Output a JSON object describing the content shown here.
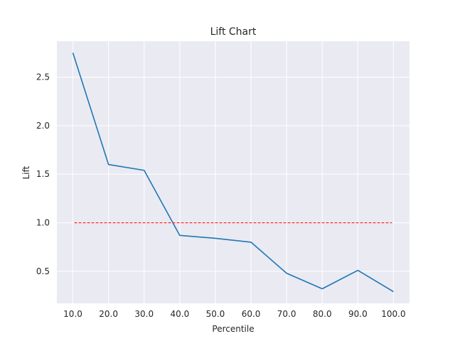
{
  "chart_data": {
    "type": "line",
    "title": "Lift Chart",
    "xlabel": "Percentile",
    "ylabel": "Lift",
    "categories": [
      "10.0",
      "20.0",
      "30.0",
      "40.0",
      "50.0",
      "60.0",
      "70.0",
      "80.0",
      "90.0",
      "100.0"
    ],
    "x": [
      10,
      20,
      30,
      40,
      50,
      60,
      70,
      80,
      90,
      100
    ],
    "series": [
      {
        "values": [
          2.75,
          1.6,
          1.54,
          0.87,
          0.84,
          0.8,
          0.48,
          0.32,
          0.51,
          0.29
        ],
        "color": "#1f77b4",
        "style": "solid"
      },
      {
        "values": [
          1.0,
          1.0,
          1.0,
          1.0,
          1.0,
          1.0,
          1.0,
          1.0,
          1.0,
          1.0
        ],
        "color": "#ff0000",
        "style": "dashed"
      }
    ],
    "xlim": [
      5.5,
      104.5
    ],
    "ylim": [
      0.17,
      2.87
    ],
    "yticks": [
      0.5,
      1.0,
      1.5,
      2.0,
      2.5
    ],
    "ytick_labels": [
      "0.5",
      "1.0",
      "1.5",
      "2.0",
      "2.5"
    ],
    "grid": true,
    "background": "#eaeaf2",
    "grid_color": "#ffffff"
  }
}
